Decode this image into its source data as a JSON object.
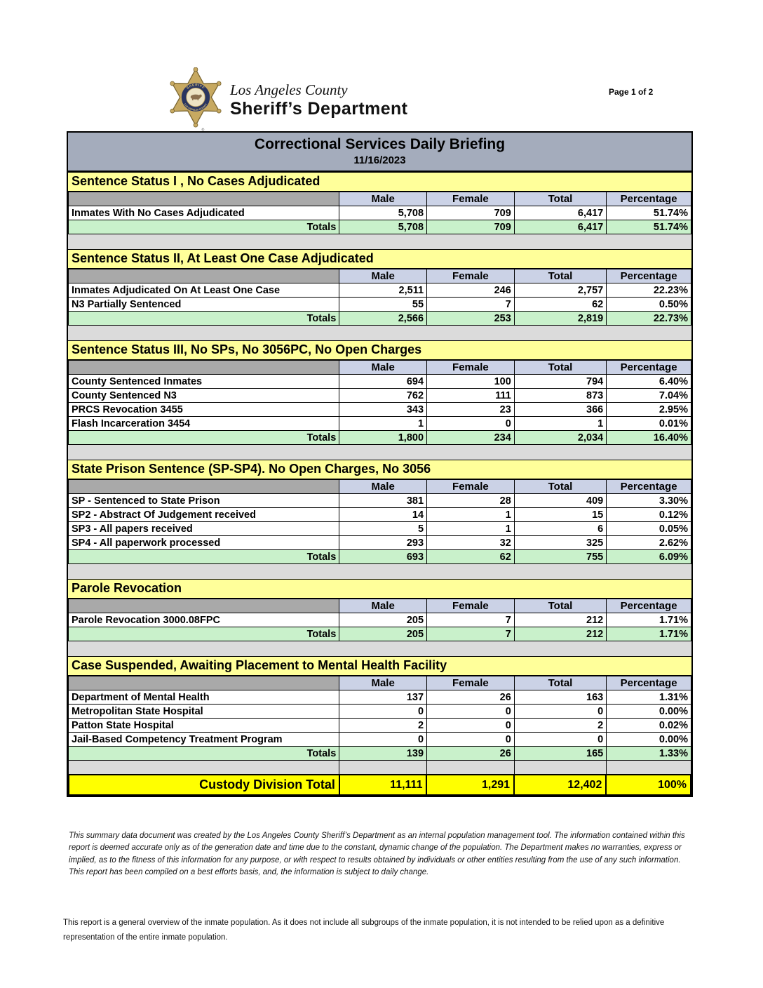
{
  "page": {
    "label": "Page 1 of 2"
  },
  "logo": {
    "line1": "Los Angeles County",
    "line2": "Sheriff’s Department",
    "badge_icon": "lasd-star-badge",
    "badge_ring_text_top": "SHERIFF",
    "badge_ring_text_bottom": "LOS ANGELES COUNTY"
  },
  "report": {
    "title": "Correctional Services Daily Briefing",
    "date": "11/16/2023",
    "columns": [
      "Male",
      "Female",
      "Total",
      "Percentage"
    ],
    "totals_label": "Totals",
    "sections": [
      {
        "title": "Sentence Status I , No Cases Adjudicated",
        "rows": [
          {
            "label": "Inmates With No Cases Adjudicated",
            "male": "5,708",
            "female": "709",
            "total": "6,417",
            "percentage": "51.74%"
          }
        ],
        "totals": {
          "male": "5,708",
          "female": "709",
          "total": "6,417",
          "percentage": "51.74%"
        }
      },
      {
        "title": "Sentence Status II, At Least One Case Adjudicated",
        "rows": [
          {
            "label": "Inmates Adjudicated On At Least One Case",
            "male": "2,511",
            "female": "246",
            "total": "2,757",
            "percentage": "22.23%"
          },
          {
            "label": "N3 Partially Sentenced",
            "male": "55",
            "female": "7",
            "total": "62",
            "percentage": "0.50%"
          }
        ],
        "totals": {
          "male": "2,566",
          "female": "253",
          "total": "2,819",
          "percentage": "22.73%"
        }
      },
      {
        "title": "Sentence Status III, No SPs, No 3056PC, No Open Charges",
        "rows": [
          {
            "label": "County Sentenced Inmates",
            "male": "694",
            "female": "100",
            "total": "794",
            "percentage": "6.40%"
          },
          {
            "label": "County Sentenced N3",
            "male": "762",
            "female": "111",
            "total": "873",
            "percentage": "7.04%"
          },
          {
            "label": "PRCS Revocation 3455",
            "male": "343",
            "female": "23",
            "total": "366",
            "percentage": "2.95%"
          },
          {
            "label": "Flash Incarceration 3454",
            "male": "1",
            "female": "0",
            "total": "1",
            "percentage": "0.01%"
          }
        ],
        "totals": {
          "male": "1,800",
          "female": "234",
          "total": "2,034",
          "percentage": "16.40%"
        }
      },
      {
        "title": "State Prison Sentence (SP-SP4). No Open Charges, No 3056",
        "rows": [
          {
            "label": "SP - Sentenced to State Prison",
            "male": "381",
            "female": "28",
            "total": "409",
            "percentage": "3.30%"
          },
          {
            "label": "SP2 - Abstract Of Judgement received",
            "male": "14",
            "female": "1",
            "total": "15",
            "percentage": "0.12%"
          },
          {
            "label": "SP3 - All papers received",
            "male": "5",
            "female": "1",
            "total": "6",
            "percentage": "0.05%"
          },
          {
            "label": "SP4 - All paperwork processed",
            "male": "293",
            "female": "32",
            "total": "325",
            "percentage": "2.62%"
          }
        ],
        "totals": {
          "male": "693",
          "female": "62",
          "total": "755",
          "percentage": "6.09%"
        }
      },
      {
        "title": "Parole Revocation",
        "rows": [
          {
            "label": "Parole Revocation 3000.08FPC",
            "male": "205",
            "female": "7",
            "total": "212",
            "percentage": "1.71%"
          }
        ],
        "totals": {
          "male": "205",
          "female": "7",
          "total": "212",
          "percentage": "1.71%"
        }
      },
      {
        "title": "Case Suspended, Awaiting Placement to Mental Health Facility",
        "rows": [
          {
            "label": "Department of Mental Health",
            "male": "137",
            "female": "26",
            "total": "163",
            "percentage": "1.31%"
          },
          {
            "label": "Metropolitan State Hospital",
            "male": "0",
            "female": "0",
            "total": "0",
            "percentage": "0.00%"
          },
          {
            "label": "Patton State Hospital",
            "male": "2",
            "female": "0",
            "total": "2",
            "percentage": "0.02%"
          },
          {
            "label": "Jail-Based Competency Treatment Program",
            "male": "0",
            "female": "0",
            "total": "0",
            "percentage": "0.00%"
          }
        ],
        "totals": {
          "male": "139",
          "female": "26",
          "total": "165",
          "percentage": "1.33%"
        }
      }
    ],
    "custody_total": {
      "label": "Custody Division Total",
      "male": "11,111",
      "female": "1,291",
      "total": "12,402",
      "percentage": "100%"
    }
  },
  "footer": {
    "disclaimer": "This summary data document was created by the Los Angeles County Sheriff’s Department as an internal population management tool.  The information contained within this report is deemed accurate only as of the generation date and time due to the constant, dynamic change of the population.  The Department makes no warranties, express or implied, as to the fitness of this information for any purpose, or with respect to results obtained by individuals or other entities resulting from the use of any such information.  This report has been compiled on a best efforts basis, and, the information is subject to daily change.",
    "overview_note": "This report is a general overview of the inmate population.  As it does not include all subgroups of the inmate population, it is not intended to be relied upon as a definitive representation of the entire inmate population."
  },
  "colors": {
    "title_bar": "#A4ACBC",
    "section_header_yellow": "#FFFF9A",
    "column_header_blue": "#CBD2E6",
    "header_gray_cell": "#A9A9A9",
    "totals_green": "#C9F1CB",
    "custody_yellow": "#FFFF00",
    "spacer_gray": "#DBDBDB",
    "badge_gold": "#C7A961",
    "badge_navy": "#2A3560"
  }
}
